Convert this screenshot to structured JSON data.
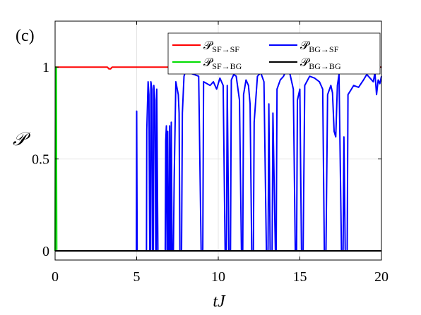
{
  "chart_data": {
    "type": "line",
    "panel_label": "(c)",
    "xlabel": "tJ",
    "ylabel": "𝒫",
    "xlim": [
      0,
      20
    ],
    "ylim": [
      -0.05,
      1.25
    ],
    "xticks": [
      0,
      5,
      10,
      15,
      20
    ],
    "xtick_labels": [
      "0",
      "5",
      "10",
      "15",
      "20"
    ],
    "yticks": [
      0,
      0.5,
      1
    ],
    "ytick_labels": [
      "0",
      "0.5",
      "1"
    ],
    "grid": true,
    "legend_position": "top-right",
    "series": [
      {
        "name_main": "𝒫",
        "name_sub": "SF→SF",
        "color": "#ff0000",
        "points": [
          [
            0,
            1.0
          ],
          [
            3.2,
            1.0
          ],
          [
            3.3,
            0.99
          ],
          [
            3.4,
            0.99
          ],
          [
            3.5,
            1.0
          ],
          [
            10.4,
            1.0
          ],
          [
            10.6,
            0.995
          ],
          [
            10.8,
            1.0
          ],
          [
            20,
            1.0
          ]
        ]
      },
      {
        "name_main": "𝒫",
        "name_sub": "SF→BG",
        "color": "#00dd00",
        "points": [
          [
            0,
            0.0
          ],
          [
            0.03,
            1.0
          ],
          [
            0.07,
            1.0
          ],
          [
            0.1,
            0.0
          ]
        ]
      },
      {
        "name_main": "𝒫",
        "name_sub": "BG→SF",
        "color": "#0000ff",
        "points": [
          [
            0,
            0.0
          ],
          [
            4.98,
            0.0
          ],
          [
            5.0,
            0.76
          ],
          [
            5.03,
            0.0
          ],
          [
            5.6,
            0.0
          ],
          [
            5.62,
            0.66
          ],
          [
            5.7,
            0.92
          ],
          [
            5.75,
            0.85
          ],
          [
            5.8,
            0.0
          ],
          [
            5.85,
            0.0
          ],
          [
            5.87,
            0.92
          ],
          [
            5.93,
            0.88
          ],
          [
            5.97,
            0.0
          ],
          [
            6.02,
            0.0
          ],
          [
            6.05,
            0.9
          ],
          [
            6.12,
            0.82
          ],
          [
            6.17,
            0.0
          ],
          [
            6.2,
            0.0
          ],
          [
            6.23,
            0.88
          ],
          [
            6.3,
            0.0
          ],
          [
            6.75,
            0.0
          ],
          [
            6.78,
            0.6
          ],
          [
            6.82,
            0.68
          ],
          [
            6.86,
            0.0
          ],
          [
            6.88,
            0.0
          ],
          [
            6.9,
            0.65
          ],
          [
            6.95,
            0.0
          ],
          [
            7.0,
            0.0
          ],
          [
            7.02,
            0.68
          ],
          [
            7.07,
            0.0
          ],
          [
            7.1,
            0.0
          ],
          [
            7.12,
            0.7
          ],
          [
            7.17,
            0.0
          ],
          [
            7.25,
            0.0
          ],
          [
            7.3,
            0.4
          ],
          [
            7.4,
            0.92
          ],
          [
            7.55,
            0.85
          ],
          [
            7.6,
            0.75
          ],
          [
            7.65,
            0.0
          ],
          [
            7.75,
            0.0
          ],
          [
            7.8,
            0.75
          ],
          [
            7.9,
            0.95
          ],
          [
            8.0,
            0.98
          ],
          [
            8.2,
            0.97
          ],
          [
            8.5,
            0.96
          ],
          [
            8.8,
            0.95
          ],
          [
            8.95,
            0.0
          ],
          [
            9.05,
            0.0
          ],
          [
            9.1,
            0.92
          ],
          [
            9.3,
            0.91
          ],
          [
            9.5,
            0.9
          ],
          [
            9.7,
            0.92
          ],
          [
            9.9,
            0.88
          ],
          [
            10.1,
            0.94
          ],
          [
            10.3,
            0.9
          ],
          [
            10.42,
            0.0
          ],
          [
            10.5,
            0.0
          ],
          [
            10.55,
            0.9
          ],
          [
            10.65,
            0.0
          ],
          [
            10.75,
            0.0
          ],
          [
            10.8,
            0.93
          ],
          [
            10.95,
            0.96
          ],
          [
            11.1,
            0.95
          ],
          [
            11.3,
            0.82
          ],
          [
            11.42,
            0.0
          ],
          [
            11.5,
            0.0
          ],
          [
            11.55,
            0.85
          ],
          [
            11.7,
            0.93
          ],
          [
            11.85,
            0.9
          ],
          [
            11.95,
            0.8
          ],
          [
            12.05,
            0.0
          ],
          [
            12.15,
            0.0
          ],
          [
            12.2,
            0.7
          ],
          [
            12.4,
            0.95
          ],
          [
            12.6,
            0.97
          ],
          [
            12.8,
            0.92
          ],
          [
            12.95,
            0.0
          ],
          [
            13.05,
            0.0
          ],
          [
            13.1,
            0.8
          ],
          [
            13.18,
            0.0
          ],
          [
            13.3,
            0.0
          ],
          [
            13.35,
            0.75
          ],
          [
            13.5,
            0.0
          ],
          [
            13.55,
            0.0
          ],
          [
            13.6,
            0.88
          ],
          [
            13.8,
            0.93
          ],
          [
            14.0,
            0.95
          ],
          [
            14.2,
            0.99
          ],
          [
            14.4,
            0.96
          ],
          [
            14.6,
            0.88
          ],
          [
            14.72,
            0.0
          ],
          [
            14.8,
            0.0
          ],
          [
            14.85,
            0.82
          ],
          [
            15.0,
            0.88
          ],
          [
            15.1,
            0.0
          ],
          [
            15.2,
            0.0
          ],
          [
            15.3,
            0.9
          ],
          [
            15.6,
            0.95
          ],
          [
            15.9,
            0.94
          ],
          [
            16.2,
            0.92
          ],
          [
            16.4,
            0.88
          ],
          [
            16.5,
            0.0
          ],
          [
            16.6,
            0.0
          ],
          [
            16.7,
            0.85
          ],
          [
            16.9,
            0.9
          ],
          [
            17.0,
            0.86
          ],
          [
            17.1,
            0.65
          ],
          [
            17.2,
            0.62
          ],
          [
            17.3,
            0.9
          ],
          [
            17.4,
            0.96
          ],
          [
            17.55,
            0.0
          ],
          [
            17.65,
            0.0
          ],
          [
            17.7,
            0.62
          ],
          [
            17.78,
            0.0
          ],
          [
            17.9,
            0.0
          ],
          [
            17.95,
            0.85
          ],
          [
            18.3,
            0.9
          ],
          [
            18.6,
            0.89
          ],
          [
            18.9,
            0.93
          ],
          [
            19.1,
            0.96
          ],
          [
            19.3,
            0.94
          ],
          [
            19.5,
            0.92
          ],
          [
            19.6,
            0.97
          ],
          [
            19.7,
            0.85
          ],
          [
            19.8,
            0.93
          ],
          [
            19.9,
            0.91
          ],
          [
            20.0,
            0.95
          ]
        ]
      },
      {
        "name_main": "𝒫",
        "name_sub": "BG→BG",
        "color": "#000000",
        "points": [
          [
            0,
            0.0
          ],
          [
            20,
            0.0
          ]
        ]
      }
    ]
  }
}
